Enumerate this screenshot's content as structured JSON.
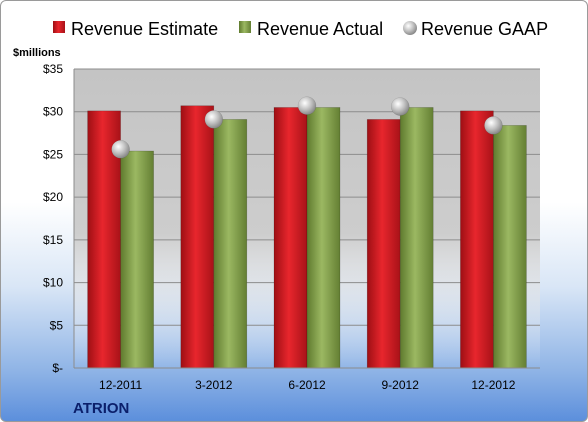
{
  "chart_data": {
    "type": "bar",
    "unit_label": "$millions",
    "brand": "ATRION",
    "categories": [
      "12-2011",
      "3-2012",
      "6-2012",
      "9-2012",
      "12-2012"
    ],
    "series": [
      {
        "name": "Revenue Estimate",
        "kind": "bar",
        "color": "#d8232a",
        "values": [
          30.1,
          30.7,
          30.5,
          29.1,
          30.1
        ]
      },
      {
        "name": "Revenue Actual",
        "kind": "bar",
        "color": "#8eaa55",
        "values": [
          25.4,
          29.1,
          30.5,
          30.5,
          28.4
        ]
      },
      {
        "name": "Revenue GAAP",
        "kind": "marker",
        "color": "#b8b8b8",
        "values": [
          25.6,
          29.1,
          30.7,
          30.6,
          28.4
        ]
      }
    ],
    "yticks": [
      0,
      5,
      10,
      15,
      20,
      25,
      30,
      35
    ],
    "ytick_labels": [
      "$-",
      "$5",
      "$10",
      "$15",
      "$20",
      "$25",
      "$30",
      "$35"
    ],
    "ylim": [
      0,
      35
    ],
    "grid": true,
    "legend_position": "top"
  }
}
